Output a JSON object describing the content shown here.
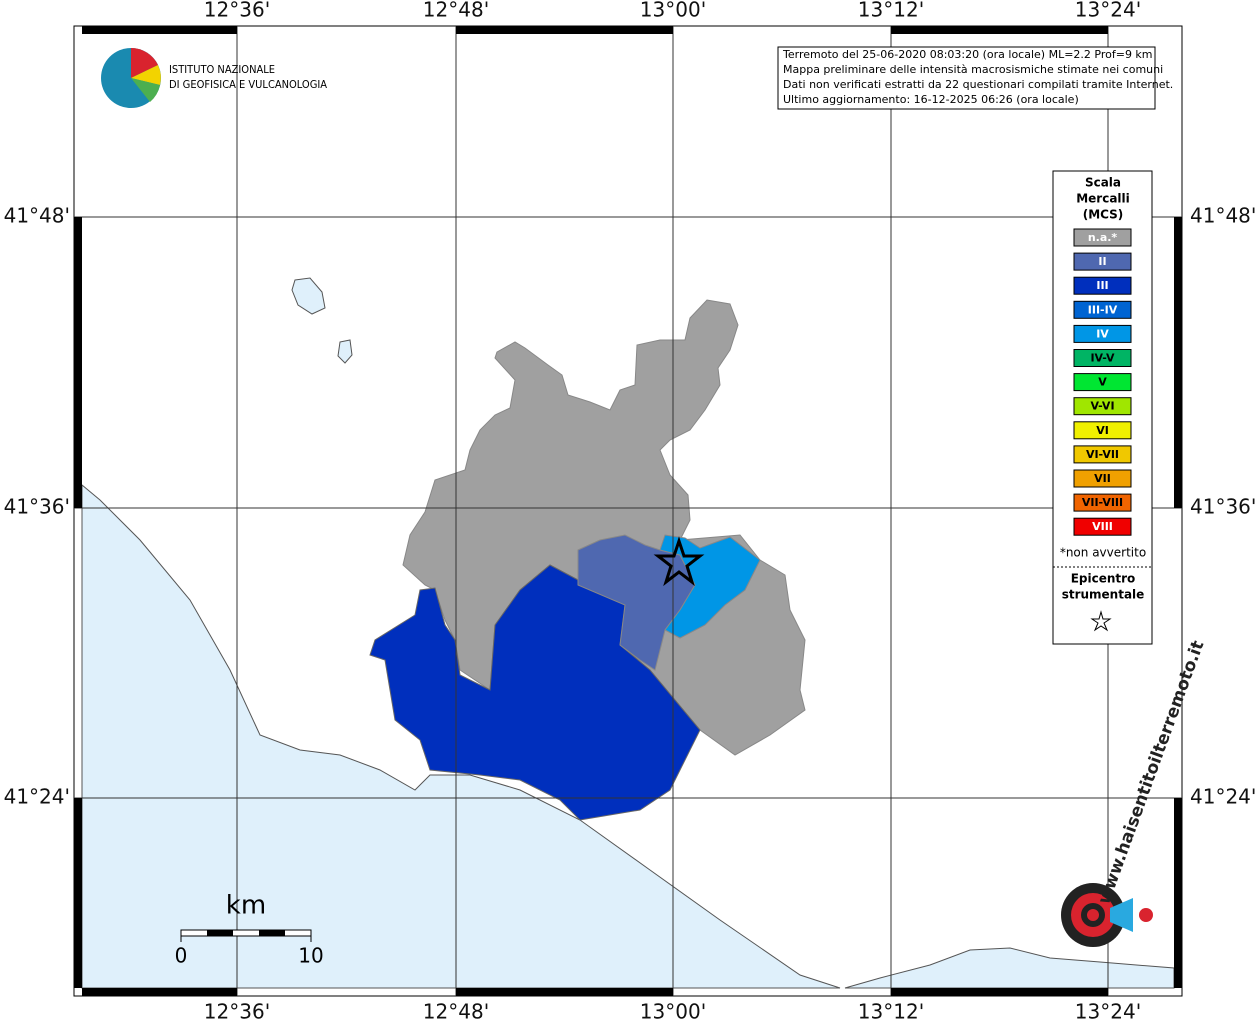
{
  "map": {
    "lon_labels": [
      "12°36'",
      "12°48'",
      "13°00'",
      "13°12'",
      "13°24'"
    ],
    "lat_labels": [
      "41°48'",
      "41°36'",
      "41°24'"
    ],
    "institute": [
      "ISTITUTO NAZIONALE",
      "DI GEOFISICA E VULCANOLOGIA"
    ],
    "info": [
      "Terremoto del 25-06-2020 08:03:20 (ora locale) ML=2.2 Prof=9 km",
      "Mappa preliminare delle intensità macrosismiche stimate nei comuni",
      "Dati non verificati estratti da 22 questionari compilati tramite Internet.",
      "Ultimo aggiornamento: 16-12-2025 06:26 (ora locale)"
    ],
    "legend": {
      "title": [
        "Scala",
        "Mercalli",
        "(MCS)"
      ],
      "items": [
        {
          "label": "n.a.*",
          "color": "#a0a0a0"
        },
        {
          "label": "II",
          "color": "#4f68b0"
        },
        {
          "label": "III",
          "color": "#002fbd"
        },
        {
          "label": "III-IV",
          "color": "#0064d2"
        },
        {
          "label": "IV",
          "color": "#0096e6"
        },
        {
          "label": "IV-V",
          "color": "#00b464"
        },
        {
          "label": "V",
          "color": "#00e632"
        },
        {
          "label": "V-VI",
          "color": "#a0e600"
        },
        {
          "label": "VI",
          "color": "#f0f000"
        },
        {
          "label": "VI-VII",
          "color": "#f0c800"
        },
        {
          "label": "VII",
          "color": "#f0a000"
        },
        {
          "label": "VII-VIII",
          "color": "#f06400"
        },
        {
          "label": "VIII",
          "color": "#f00000"
        }
      ],
      "note": "*non avvertito",
      "epicenter": [
        "Epicentro",
        "strumentale"
      ]
    },
    "scale": {
      "unit": "km",
      "labels": [
        "0",
        "10"
      ]
    },
    "site": "www.haisentitoilterremoto.it"
  }
}
